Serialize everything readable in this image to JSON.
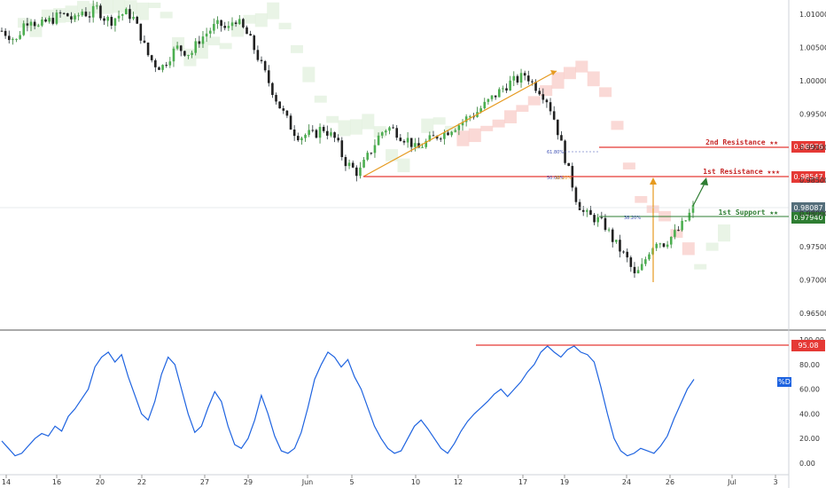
{
  "chart_data": [
    {
      "type": "candlestick",
      "panel": "price",
      "instrument_note": "",
      "ylim": [
        0.9625,
        1.0125
      ],
      "y_ticks": [
        "1.01000",
        "1.00500",
        "1.00000",
        "0.99500",
        "0.99000",
        "0.98500",
        "0.98000",
        "0.97500",
        "0.97000",
        "0.96500"
      ],
      "x_ticks": [
        "14",
        "16",
        "20",
        "22",
        "27",
        "29",
        "Jun",
        "5",
        "10",
        "12",
        "17",
        "19",
        "24",
        "26",
        "Jul",
        "3"
      ],
      "levels": [
        {
          "name": "2nd Resistance ★★",
          "value": 0.98976,
          "tag": "0.98976",
          "color": "#e53935"
        },
        {
          "name": "1st Resistance ★★★",
          "value": 0.98547,
          "tag": "0.98547",
          "color": "#e53935"
        },
        {
          "name": "1st Support ★★",
          "value": 0.9794,
          "tag": "0.97940",
          "color": "#2e7d32"
        }
      ],
      "last_price": {
        "value": 0.98087,
        "tag": "0.98087",
        "color": "#607d8b"
      },
      "fib_labels": [
        "61.80%",
        "50.00%",
        "38.20%",
        "38.20%"
      ],
      "close_path": [
        1.0075,
        1.0068,
        1.006,
        1.0085,
        1.0095,
        1.008,
        1.0088,
        1.0092,
        1.01,
        1.0098,
        1.009,
        1.0105,
        1.0098,
        1.011,
        1.0095,
        1.009,
        1.0098,
        1.0102,
        1.0096,
        1.007,
        1.004,
        1.0025,
        1.002,
        1.0035,
        1.005,
        1.0045,
        1.004,
        1.006,
        1.007,
        1.008,
        1.0085,
        1.0075,
        1.0095,
        1.008,
        1.0065,
        1.004,
        1.0015,
        0.999,
        0.9965,
        0.9945,
        0.9925,
        0.9915,
        0.992,
        0.9918,
        0.993,
        0.992,
        0.991,
        0.988,
        0.987,
        0.986,
        0.988,
        0.99,
        0.992,
        0.993,
        0.9925,
        0.9915,
        0.991,
        0.9895,
        0.9905,
        0.9912,
        0.9918,
        0.9922,
        0.993,
        0.9935,
        0.9945,
        0.995,
        0.996,
        0.997,
        0.998,
        0.999,
        0.9998,
        1.0002,
        1.001,
        0.9995,
        0.9985,
        0.997,
        0.994,
        0.99,
        0.986,
        0.982,
        0.98,
        0.9795,
        0.979,
        0.978,
        0.976,
        0.9745,
        0.973,
        0.9705,
        0.972,
        0.9745,
        0.976,
        0.9755,
        0.9765,
        0.9775,
        0.979,
        0.9808
      ],
      "rsi_panel": {
        "ylim": [
          0,
          100
        ],
        "y_ticks": [
          "0.00",
          "20.00",
          "40.00",
          "60.00",
          "80.00",
          "100.00"
        ],
        "level": {
          "value": 95.08,
          "tag": "95.08",
          "color": "#e53935"
        },
        "label": "%D",
        "values": [
          18,
          12,
          6,
          8,
          14,
          20,
          24,
          22,
          30,
          26,
          38,
          44,
          52,
          60,
          78,
          86,
          90,
          82,
          88,
          70,
          55,
          40,
          35,
          50,
          72,
          86,
          80,
          60,
          40,
          25,
          30,
          45,
          58,
          50,
          30,
          15,
          12,
          20,
          35,
          55,
          40,
          22,
          10,
          8,
          12,
          25,
          45,
          68,
          80,
          90,
          86,
          78,
          84,
          70,
          60,
          45,
          30,
          20,
          12,
          8,
          10,
          20,
          30,
          35,
          28,
          20,
          12,
          8,
          16,
          26,
          34,
          40,
          45,
          50,
          56,
          60,
          54,
          60,
          66,
          74,
          80,
          90,
          95,
          90,
          86,
          92,
          95,
          90,
          88,
          82,
          62,
          40,
          20,
          10,
          6,
          8,
          12,
          10,
          8,
          14,
          22,
          36,
          48,
          60,
          68
        ]
      }
    }
  ]
}
